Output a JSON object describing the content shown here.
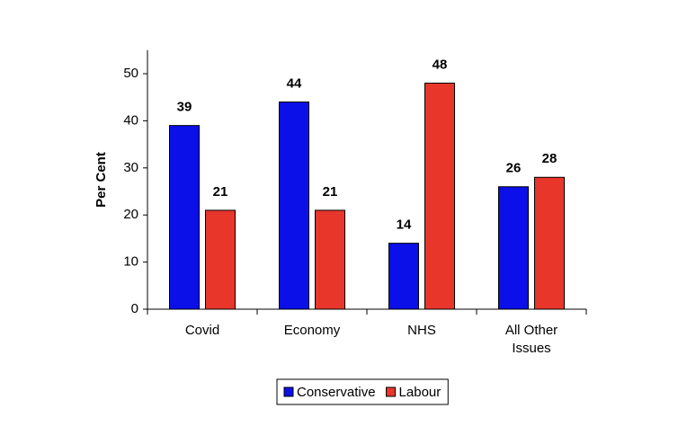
{
  "chart_data": {
    "type": "bar",
    "categories": [
      "Covid",
      "Economy",
      "NHS",
      "All Other Issues"
    ],
    "series": [
      {
        "name": "Conservative",
        "color": "#0b0fe8",
        "values": [
          39,
          44,
          14,
          26
        ]
      },
      {
        "name": "Labour",
        "color": "#e8362b",
        "values": [
          21,
          21,
          48,
          28
        ]
      }
    ],
    "y_label": "Per Cent",
    "ylim": [
      0,
      55
    ],
    "yticks": [
      0,
      10,
      20,
      30,
      40,
      50
    ],
    "legend": "bottom"
  }
}
